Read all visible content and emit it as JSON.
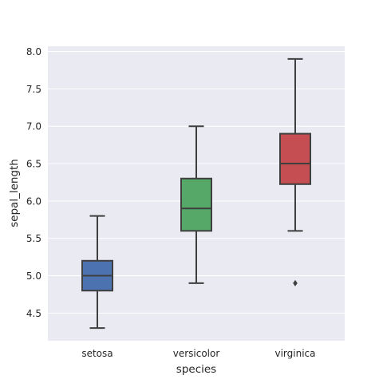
{
  "chart_data": {
    "type": "box",
    "title": "",
    "xlabel": "species",
    "ylabel": "sepal_length",
    "ylim": [
      4.13,
      8.07
    ],
    "yticks": [
      4.5,
      5.0,
      5.5,
      6.0,
      6.5,
      7.0,
      7.5,
      8.0
    ],
    "ytick_labels": [
      "4.5",
      "5.0",
      "5.5",
      "6.0",
      "6.5",
      "7.0",
      "7.5",
      "8.0"
    ],
    "grid": true,
    "categories": [
      "setosa",
      "versicolor",
      "virginica"
    ],
    "boxes": [
      {
        "category": "setosa",
        "whisker_low": 4.3,
        "q1": 4.8,
        "median": 5.0,
        "q3": 5.2,
        "whisker_high": 5.8,
        "outliers": [],
        "color": "#4c72b0"
      },
      {
        "category": "versicolor",
        "whisker_low": 4.9,
        "q1": 5.6,
        "median": 5.9,
        "q3": 6.3,
        "whisker_high": 7.0,
        "outliers": [],
        "color": "#55a868"
      },
      {
        "category": "virginica",
        "whisker_low": 5.6,
        "q1": 6.225,
        "median": 6.5,
        "q3": 6.9,
        "whisker_high": 7.9,
        "outliers": [
          4.9
        ],
        "color": "#c44e52"
      }
    ],
    "colors": {
      "background": "#eaeaf2",
      "grid": "#ffffff",
      "line": "#3f3f3f",
      "text": "#262626"
    }
  }
}
